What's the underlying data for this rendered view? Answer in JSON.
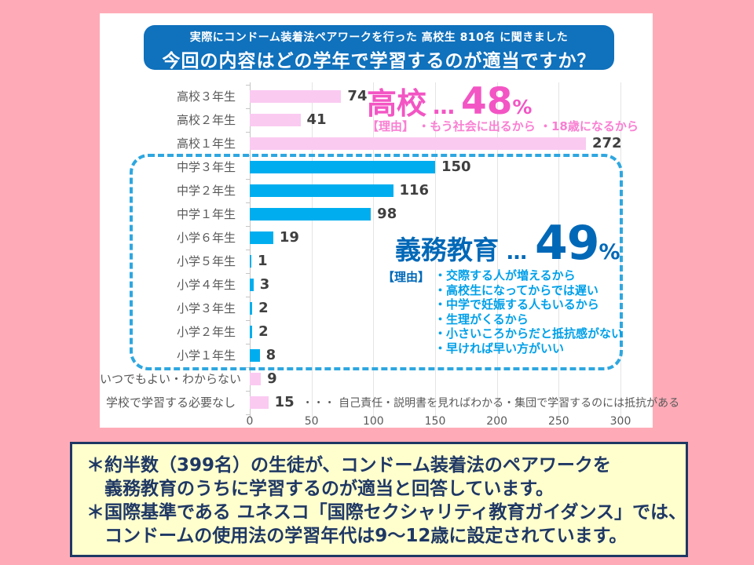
{
  "header": {
    "line1": "実際にコンドーム装着法ペアワークを行った 高校生 810名 に聞きました",
    "line2": "今回の内容はどの学年で学習するのが適当ですか？"
  },
  "chart_data": {
    "type": "bar",
    "orientation": "horizontal",
    "title": "今回の内容はどの学年で学習するのが適当ですか？",
    "categories": [
      "高校３年生",
      "高校２年生",
      "高校１年生",
      "中学３年生",
      "中学２年生",
      "中学１年生",
      "小学６年生",
      "小学５年生",
      "小学４年生",
      "小学３年生",
      "小学２年生",
      "小学１年生",
      "いつでもよい・わからない",
      "学校で学習する必要なし"
    ],
    "values": [
      74,
      41,
      272,
      150,
      116,
      98,
      19,
      1,
      3,
      2,
      2,
      8,
      9,
      15
    ],
    "groups": [
      "pink",
      "pink",
      "pink",
      "blue",
      "blue",
      "blue",
      "blue",
      "blue",
      "blue",
      "blue",
      "blue",
      "blue",
      "pink",
      "pink"
    ],
    "bar_colors": {
      "pink": "#FACAF1",
      "blue": "#00AEEF"
    },
    "xlim": [
      0,
      300
    ],
    "x_ticks": [
      0,
      50,
      100,
      150,
      200,
      250,
      300
    ],
    "grid": true,
    "legend": "none"
  },
  "annotations": {
    "highschool": {
      "label": "高校",
      "dots": "…",
      "pct": "48",
      "unit": "%",
      "reasons": "【理由】 ・もう社会に出るから ・18歳になるから"
    },
    "compulsory": {
      "label": "義務教育",
      "dots": "…",
      "pct": "49",
      "unit": "%",
      "reason_header": "【理由】",
      "reasons": [
        "・交際する人が増えるから",
        "・高校生になってからでは遅い",
        "・中学で妊娠する人もいるから",
        "・生理がくるから",
        "・小さいころからだと抵抗感がない",
        "・早ければ早い方がいい"
      ]
    },
    "no_need_note": "・・・ 自己責任・説明書を見ればわかる・集団で学習するのには抵抗がある"
  },
  "footnote": {
    "lines": [
      "＊約半数（399名）の生徒が、コンドーム装着法のペアワークを",
      "　義務教育のうちに学習するのが適当と回答しています。",
      "＊国際基準である ユネスコ「国際セクシャリティ教育ガイダンス」では、",
      "　コンドームの使用法の学習年代は9～12歳に設定されています。"
    ]
  }
}
